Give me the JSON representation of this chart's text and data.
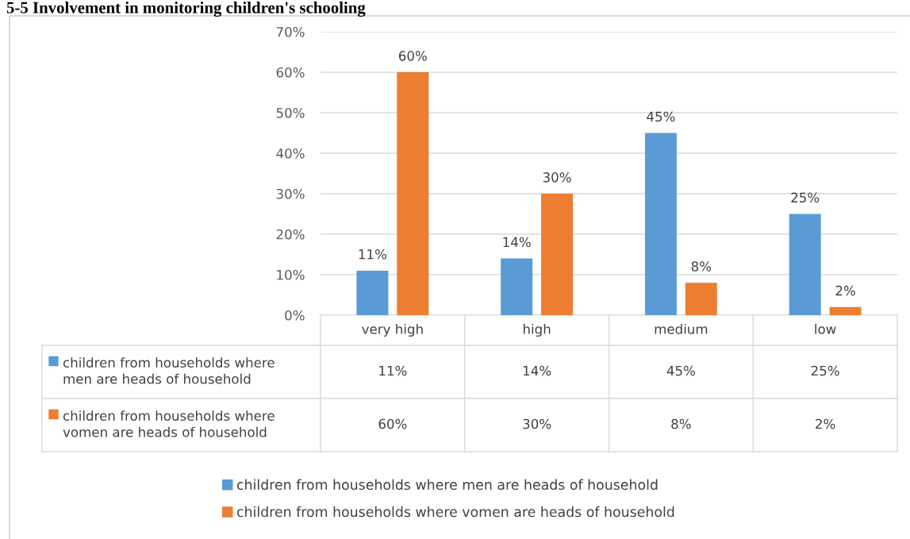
{
  "chart_data": {
    "type": "bar",
    "title": "5-5 Involvement in monitoring children's schooling",
    "categories": [
      "very high",
      "high",
      "medium",
      "low"
    ],
    "series": [
      {
        "name": "children from households where men are heads of household",
        "color": "#5b9bd5",
        "values": [
          11,
          14,
          45,
          25
        ],
        "value_labels": [
          "11%",
          "14%",
          "45%",
          "25%"
        ]
      },
      {
        "name": "children from households where vomen are heads of household",
        "color": "#ed7d31",
        "values": [
          60,
          30,
          8,
          2
        ],
        "value_labels": [
          "60%",
          "30%",
          "8%",
          "2%"
        ]
      }
    ],
    "ylim": [
      0,
      70
    ],
    "yticks": [
      {
        "value": 0,
        "label": "0%"
      },
      {
        "value": 10,
        "label": "10%"
      },
      {
        "value": 20,
        "label": "20%"
      },
      {
        "value": 30,
        "label": "30%"
      },
      {
        "value": 40,
        "label": "40%"
      },
      {
        "value": 50,
        "label": "50%"
      },
      {
        "value": 60,
        "label": "60%"
      },
      {
        "value": 70,
        "label": "70%"
      }
    ],
    "grid": "y",
    "legend": "bottom"
  }
}
